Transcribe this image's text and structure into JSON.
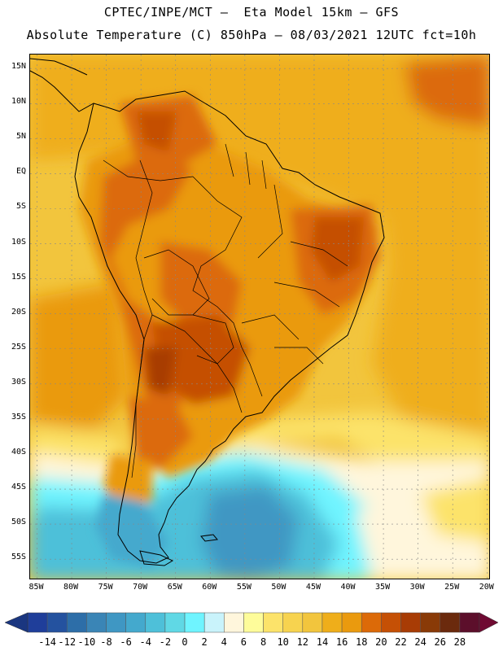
{
  "title": {
    "line1": "CPTEC/INPE/MCT –  Eta Model 15km – GFS",
    "line2": "Absolute Temperature (C) 850hPa – 08/03/2021 12UTC fct=10h"
  },
  "map": {
    "lat_labels": [
      "15N",
      "10N",
      "5N",
      "EQ",
      "5S",
      "10S",
      "15S",
      "20S",
      "25S",
      "30S",
      "35S",
      "40S",
      "45S",
      "50S",
      "55S"
    ],
    "lon_labels": [
      "85W",
      "80W",
      "75W",
      "70W",
      "65W",
      "60W",
      "55W",
      "50W",
      "45W",
      "40W",
      "35W",
      "30W",
      "25W",
      "20W"
    ],
    "extent_deg": {
      "lon_min": -86,
      "lon_max": -19.5,
      "lat_min": -58,
      "lat_max": 17
    }
  },
  "colorbar": {
    "labels": [
      "-14",
      "-12",
      "-10",
      "-8",
      "-6",
      "-4",
      "-2",
      "0",
      "2",
      "4",
      "6",
      "8",
      "10",
      "12",
      "14",
      "16",
      "18",
      "20",
      "22",
      "24",
      "26",
      "28"
    ],
    "colors": [
      "#1f3e9a",
      "#24529f",
      "#2d6ea8",
      "#3a85b6",
      "#3f97c3",
      "#44a9cd",
      "#4ec0d9",
      "#60d8e5",
      "#6ff4ff",
      "#c9f3fb",
      "#fff6dc",
      "#fefc9a",
      "#fce36a",
      "#f7d34f",
      "#f2c53d",
      "#efae1a",
      "#ea9a0e",
      "#dc6a08",
      "#c55005",
      "#a83c05",
      "#893a07",
      "#6b2a0d",
      "#5c0f2b"
    ],
    "low_arrow_color": "#1a3680",
    "high_arrow_color": "#6f0a32"
  },
  "background_color": "#f3c23a"
}
